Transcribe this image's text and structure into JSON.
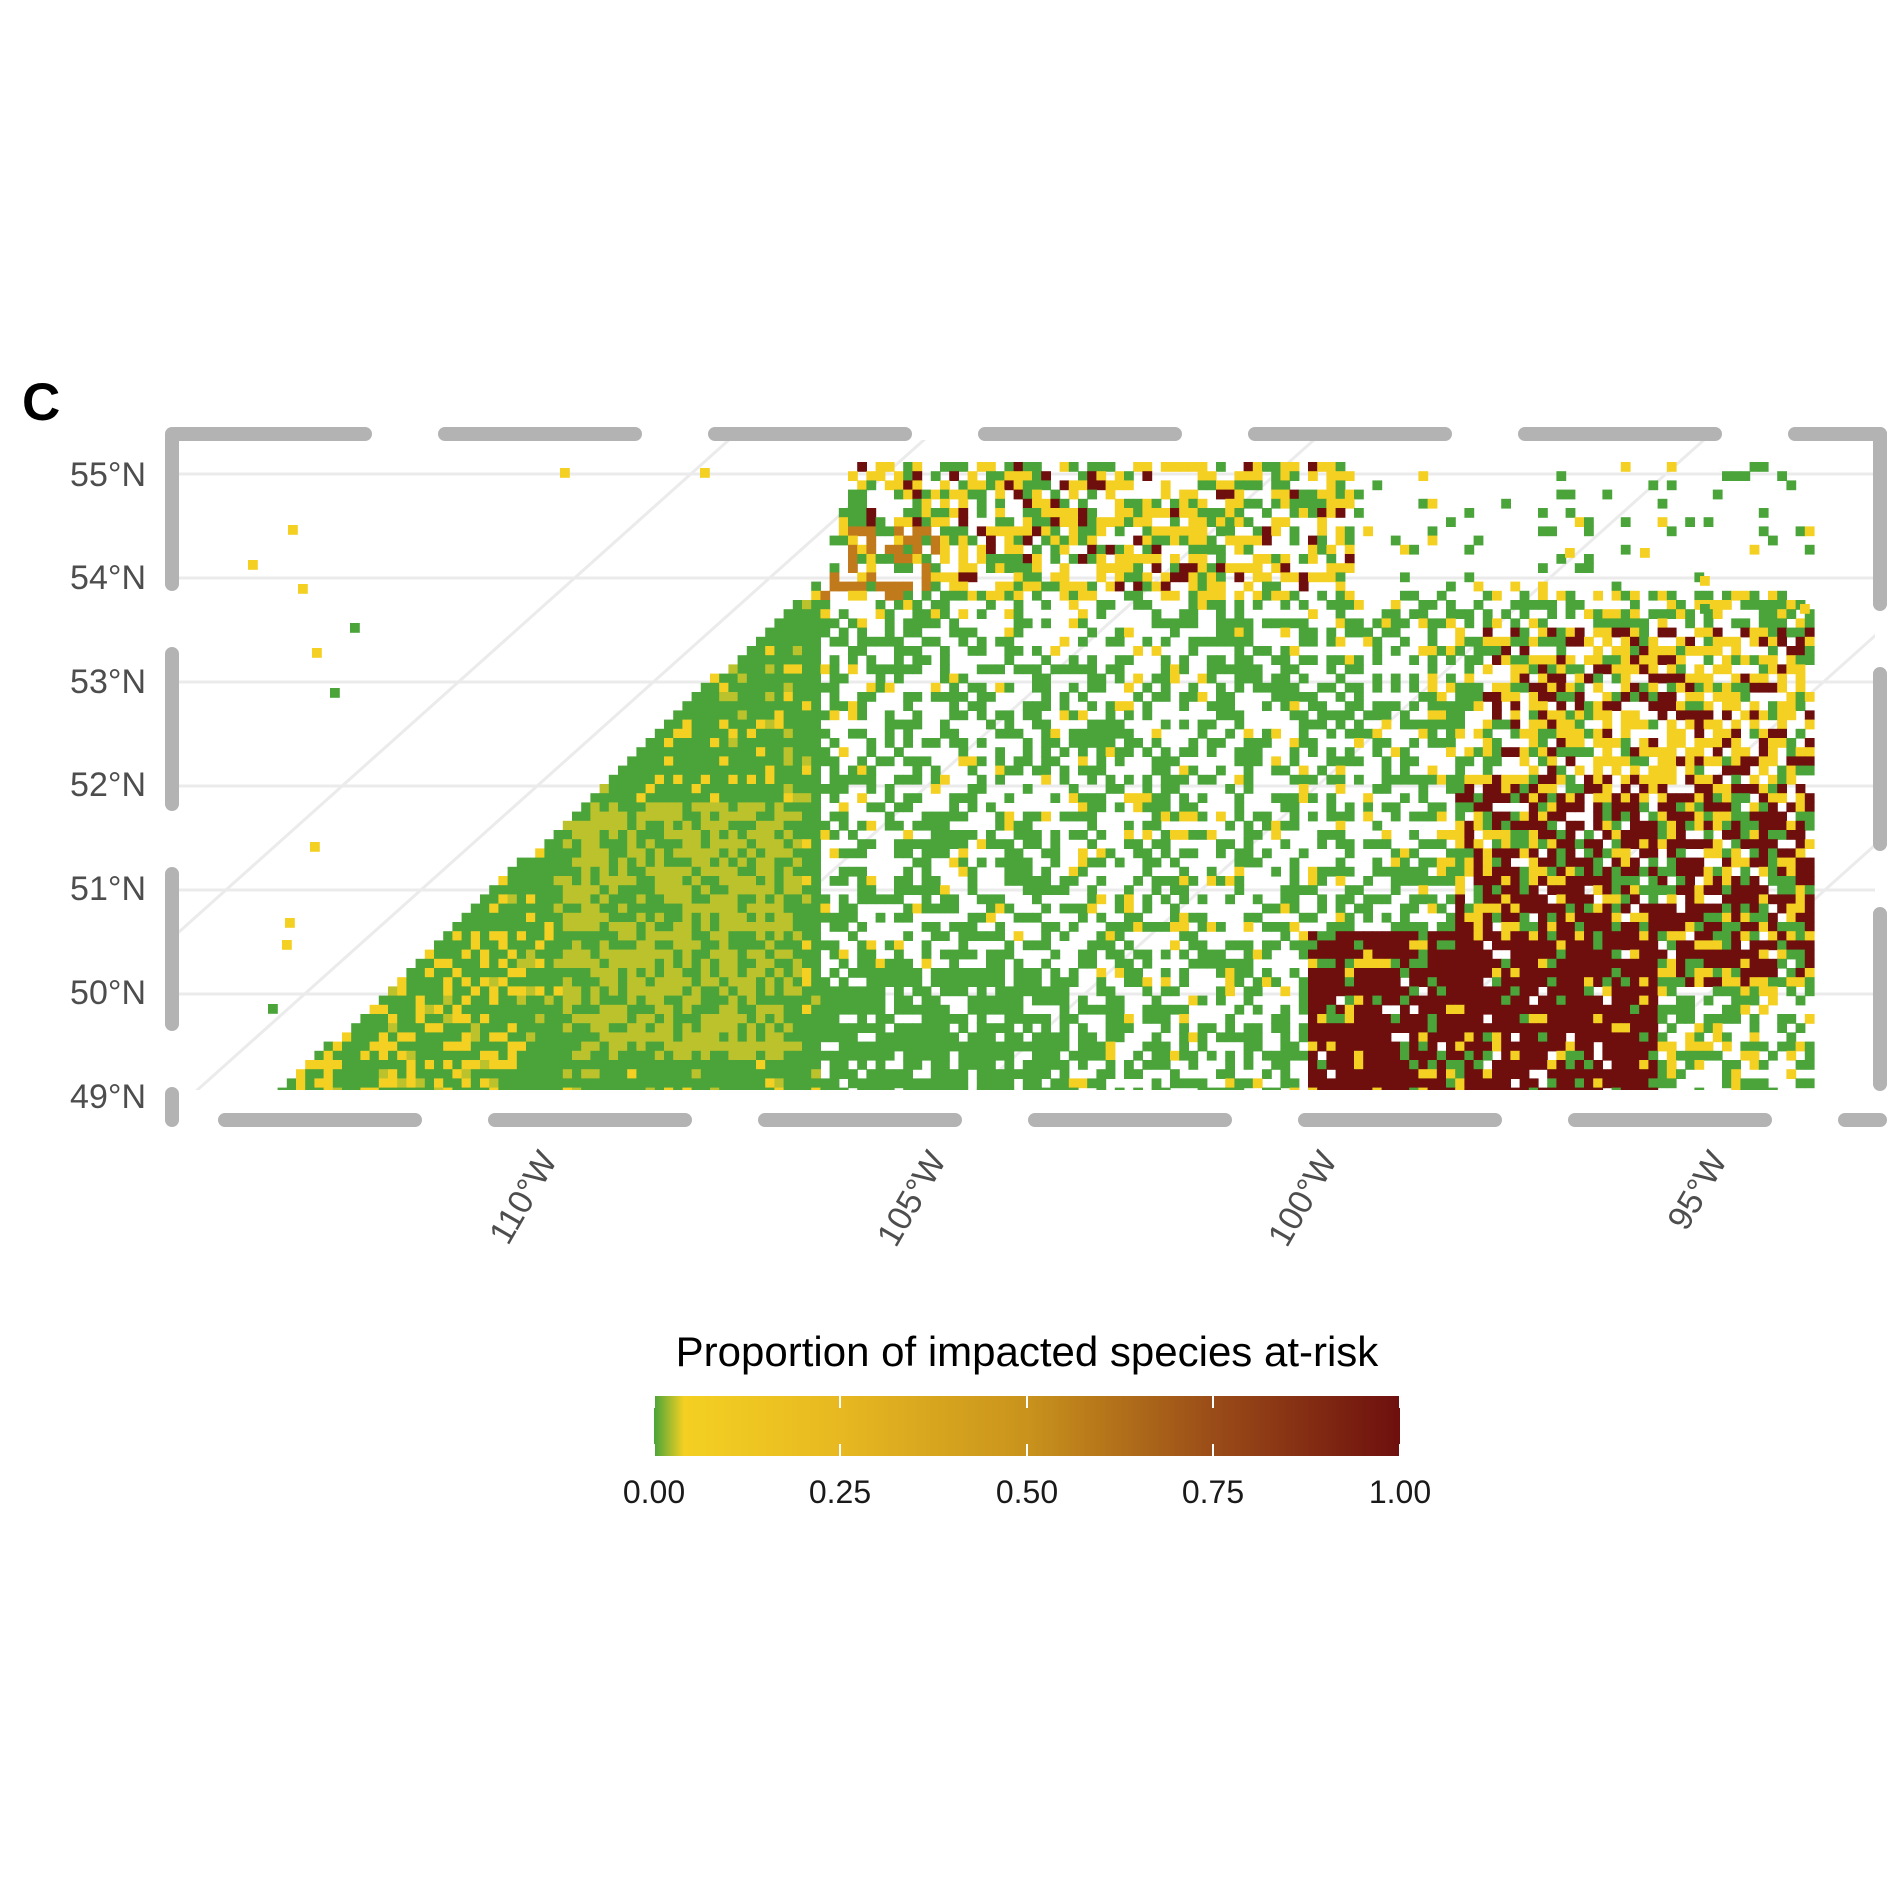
{
  "panel": {
    "tag": "C"
  },
  "map": {
    "type": "raster-map",
    "graticule": {
      "latitudes": [
        {
          "value": 55,
          "label": "55°N"
        },
        {
          "value": 54,
          "label": "54°N"
        },
        {
          "value": 53,
          "label": "53°N"
        },
        {
          "value": 52,
          "label": "52°N"
        },
        {
          "value": 51,
          "label": "51°N"
        },
        {
          "value": 50,
          "label": "50°N"
        },
        {
          "value": 49,
          "label": "49°N"
        }
      ],
      "longitudes": [
        {
          "value": -110,
          "label": "110°W"
        },
        {
          "value": -105,
          "label": "105°W"
        },
        {
          "value": -100,
          "label": "100°W"
        },
        {
          "value": -95,
          "label": "95°W"
        }
      ]
    },
    "frame_color": "#b3b3b3",
    "grid_color": "#ebebeb"
  },
  "legend": {
    "title": "Proportion of impacted species at-risk",
    "ticks": [
      "0.00",
      "0.25",
      "0.50",
      "0.75",
      "1.00"
    ],
    "tick_values": [
      0,
      0.25,
      0.5,
      0.75,
      1
    ],
    "colors": {
      "zero": "#4aa43a",
      "low": "#f4d022",
      "mid": "#c9931c",
      "high": "#6e0f0e"
    }
  }
}
